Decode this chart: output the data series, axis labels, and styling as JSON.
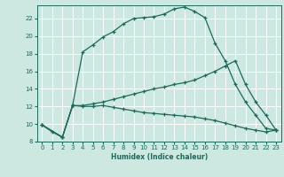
{
  "xlabel": "Humidex (Indice chaleur)",
  "xlim": [
    -0.5,
    23.5
  ],
  "ylim": [
    8,
    23.5
  ],
  "yticks": [
    8,
    10,
    12,
    14,
    16,
    18,
    20,
    22
  ],
  "xticks": [
    0,
    1,
    2,
    3,
    4,
    5,
    6,
    7,
    8,
    9,
    10,
    11,
    12,
    13,
    14,
    15,
    16,
    17,
    18,
    19,
    20,
    21,
    22,
    23
  ],
  "bg_color": "#cce8e0",
  "grid_color": "#ffffff",
  "line_color": "#1a6b5a",
  "line1_x": [
    0,
    1,
    2,
    3,
    4,
    5,
    6,
    7,
    8,
    9,
    10,
    11,
    12,
    13,
    14,
    15,
    16,
    17,
    18,
    19,
    20,
    21,
    22,
    23
  ],
  "line1_y": [
    9.9,
    9.1,
    8.5,
    12.1,
    18.2,
    19.0,
    19.9,
    20.5,
    21.4,
    22.0,
    22.1,
    22.2,
    22.5,
    23.1,
    23.3,
    22.8,
    22.1,
    19.2,
    17.2,
    14.5,
    12.5,
    11.0,
    9.5,
    9.3
  ],
  "line2_x": [
    0,
    2,
    3,
    4,
    5,
    6,
    7,
    8,
    9,
    10,
    11,
    12,
    13,
    14,
    15,
    16,
    17,
    18,
    19,
    20,
    21,
    22,
    23
  ],
  "line2_y": [
    9.9,
    8.5,
    12.1,
    12.0,
    12.0,
    12.1,
    11.9,
    11.7,
    11.5,
    11.3,
    11.2,
    11.1,
    11.0,
    10.9,
    10.8,
    10.6,
    10.4,
    10.1,
    9.8,
    9.5,
    9.3,
    9.1,
    9.3
  ],
  "line3_x": [
    0,
    2,
    3,
    4,
    5,
    6,
    7,
    8,
    9,
    10,
    11,
    12,
    13,
    14,
    15,
    16,
    17,
    18,
    19,
    20,
    21,
    22,
    23
  ],
  "line3_y": [
    9.9,
    8.5,
    12.1,
    12.1,
    12.3,
    12.5,
    12.8,
    13.1,
    13.4,
    13.7,
    14.0,
    14.2,
    14.5,
    14.7,
    15.0,
    15.5,
    16.0,
    16.6,
    17.2,
    14.5,
    12.5,
    11.0,
    9.3
  ]
}
